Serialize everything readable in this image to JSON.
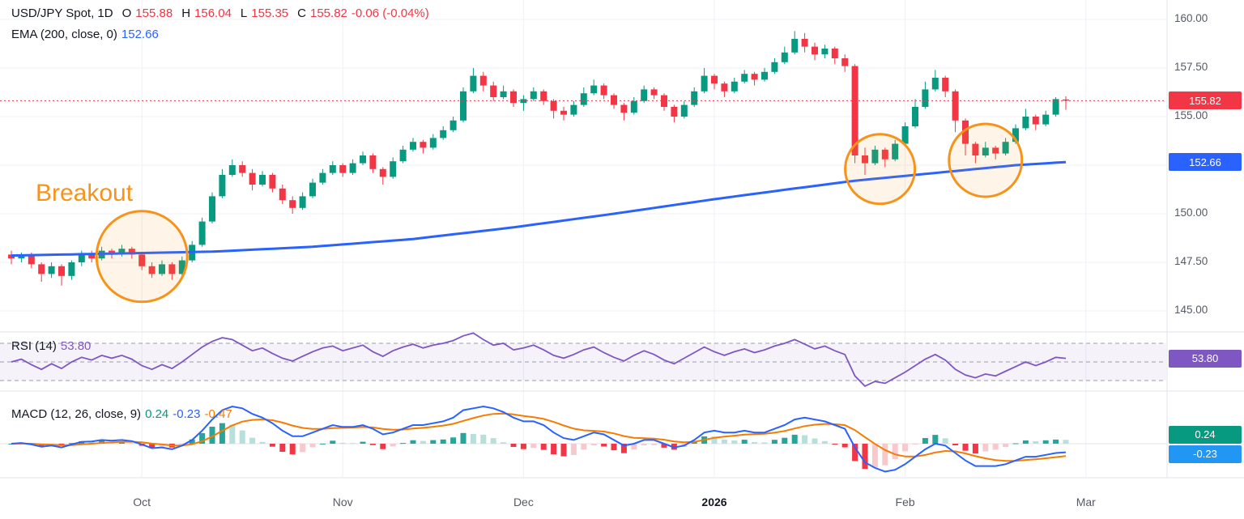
{
  "header": {
    "symbol": "USD/JPY Spot, 1D",
    "o_label": "O",
    "o": "155.88",
    "h_label": "H",
    "h": "156.04",
    "l_label": "L",
    "l": "155.35",
    "c_label": "C",
    "c": "155.82",
    "change": "-0.06 (-0.04%)",
    "ema_label": "EMA (200, close, 0)",
    "ema_value": "152.66"
  },
  "panes": {
    "rsi": {
      "legend": "RSI (14)",
      "value": "53.80"
    },
    "macd": {
      "legend": "MACD (12, 26, close, 9)",
      "hist_value": "0.24",
      "macd_value": "-0.23",
      "signal_value": "-0.47"
    }
  },
  "badges": {
    "last_price": "155.82",
    "ema": "152.66",
    "rsi": "53.80",
    "macd_hist": "0.24",
    "macd_line": "-0.23"
  },
  "axes": {
    "price_ticks": [
      {
        "label": "160.00",
        "price": 160
      },
      {
        "label": "157.50",
        "price": 157.5
      },
      {
        "label": "155.00",
        "price": 155
      },
      {
        "label": "150.00",
        "price": 150
      },
      {
        "label": "147.50",
        "price": 147.5
      },
      {
        "label": "145.00",
        "price": 145
      }
    ],
    "time_ticks": [
      {
        "label": "Oct",
        "i": 13
      },
      {
        "label": "Nov",
        "i": 33
      },
      {
        "label": "Dec",
        "i": 51
      },
      {
        "label": "2026",
        "i": 70,
        "bold": true
      },
      {
        "label": "Feb",
        "i": 89
      },
      {
        "label": "Mar",
        "i": 107
      }
    ]
  },
  "annotations": {
    "breakout_label": "Breakout",
    "circles": [
      {
        "i": 13,
        "price": 147.8,
        "r": 56
      },
      {
        "i": 86.5,
        "price": 152.3,
        "r": 43
      },
      {
        "i": 97,
        "price": 152.75,
        "r": 45
      }
    ]
  },
  "colors": {
    "up": "#089981",
    "down": "#f23645",
    "ema": "#2962ff",
    "ema_badge": "#2962ff",
    "rsi": "#7e57c2",
    "rsi_band": "rgba(126,87,194,0.08)",
    "macd_line": "#2962ff",
    "macd_signal": "#f57c00",
    "hist_up": "#26a69a",
    "hist_up_weak": "#b7dfdb",
    "hist_down": "#f23645",
    "hist_down_weak": "#f8c9cc",
    "hist_badge": "#089981",
    "macd_badge": "#2196f3",
    "annotation": "#f7931a",
    "grid": "#eef1f7",
    "divider": "#e0e3eb",
    "dashed": "#9b9eab",
    "axis_text": "#555a64"
  },
  "chart_data": {
    "type": "candlestick",
    "symbol": "USD/JPY Spot",
    "interval": "1D",
    "last_price": 155.82,
    "price_axis_range": [
      145,
      160
    ],
    "grid_prices": [
      160,
      157.5,
      155,
      152.5,
      150,
      147.5,
      145
    ],
    "candles": [
      [
        147.9,
        148.1,
        147.4,
        147.7
      ],
      [
        147.7,
        148.0,
        147.5,
        147.9
      ],
      [
        147.9,
        148.0,
        147.2,
        147.4
      ],
      [
        147.4,
        147.5,
        146.5,
        146.9
      ],
      [
        146.9,
        147.5,
        146.7,
        147.3
      ],
      [
        147.3,
        147.4,
        146.3,
        146.8
      ],
      [
        146.8,
        147.6,
        146.6,
        147.5
      ],
      [
        147.5,
        148.1,
        147.3,
        147.9
      ],
      [
        147.9,
        148.1,
        147.5,
        147.7
      ],
      [
        147.7,
        148.3,
        147.6,
        148.1
      ],
      [
        148.1,
        148.2,
        147.7,
        147.9
      ],
      [
        147.9,
        148.4,
        147.8,
        148.2
      ],
      [
        148.2,
        148.3,
        147.7,
        147.9
      ],
      [
        147.9,
        148.0,
        147.1,
        147.3
      ],
      [
        147.3,
        147.5,
        146.7,
        146.9
      ],
      [
        146.9,
        147.6,
        146.8,
        147.4
      ],
      [
        147.4,
        147.5,
        146.6,
        146.9
      ],
      [
        146.9,
        147.8,
        146.8,
        147.6
      ],
      [
        147.6,
        148.6,
        147.5,
        148.4
      ],
      [
        148.4,
        149.8,
        148.3,
        149.6
      ],
      [
        149.6,
        151.1,
        149.5,
        150.9
      ],
      [
        150.9,
        152.3,
        150.8,
        152.0
      ],
      [
        152.0,
        152.8,
        151.9,
        152.5
      ],
      [
        152.5,
        152.7,
        151.9,
        152.1
      ],
      [
        152.1,
        152.3,
        151.2,
        151.5
      ],
      [
        151.5,
        152.2,
        151.4,
        152.0
      ],
      [
        152.0,
        152.1,
        151.1,
        151.3
      ],
      [
        151.3,
        151.5,
        150.5,
        150.7
      ],
      [
        150.7,
        150.9,
        150.0,
        150.3
      ],
      [
        150.3,
        151.1,
        150.2,
        150.9
      ],
      [
        150.9,
        151.8,
        150.8,
        151.6
      ],
      [
        151.6,
        152.3,
        151.5,
        152.1
      ],
      [
        152.1,
        152.7,
        152.0,
        152.5
      ],
      [
        152.5,
        152.6,
        151.9,
        152.1
      ],
      [
        152.1,
        152.8,
        152.0,
        152.6
      ],
      [
        152.6,
        153.2,
        152.5,
        153.0
      ],
      [
        153.0,
        153.1,
        152.1,
        152.3
      ],
      [
        152.3,
        152.4,
        151.5,
        151.9
      ],
      [
        151.9,
        152.9,
        151.8,
        152.7
      ],
      [
        152.7,
        153.5,
        152.6,
        153.3
      ],
      [
        153.3,
        153.9,
        153.2,
        153.7
      ],
      [
        153.7,
        153.8,
        153.1,
        153.4
      ],
      [
        153.4,
        154.1,
        153.3,
        153.9
      ],
      [
        153.9,
        154.5,
        153.8,
        154.3
      ],
      [
        154.3,
        155.0,
        154.2,
        154.8
      ],
      [
        154.8,
        156.5,
        154.7,
        156.3
      ],
      [
        156.3,
        157.5,
        156.2,
        157.1
      ],
      [
        157.1,
        157.3,
        156.3,
        156.6
      ],
      [
        156.6,
        156.8,
        155.8,
        156.0
      ],
      [
        156.0,
        156.6,
        155.9,
        156.3
      ],
      [
        156.3,
        156.4,
        155.5,
        155.7
      ],
      [
        155.7,
        156.1,
        155.3,
        155.9
      ],
      [
        155.9,
        156.5,
        155.8,
        156.3
      ],
      [
        156.3,
        156.4,
        155.6,
        155.8
      ],
      [
        155.8,
        155.9,
        154.9,
        155.3
      ],
      [
        155.3,
        155.5,
        154.8,
        155.1
      ],
      [
        155.1,
        155.8,
        155.0,
        155.6
      ],
      [
        155.6,
        156.5,
        155.5,
        156.2
      ],
      [
        156.2,
        156.9,
        156.1,
        156.6
      ],
      [
        156.6,
        156.7,
        155.9,
        156.1
      ],
      [
        156.1,
        156.2,
        155.4,
        155.6
      ],
      [
        155.6,
        155.7,
        154.8,
        155.2
      ],
      [
        155.2,
        156.0,
        155.1,
        155.8
      ],
      [
        155.8,
        156.6,
        155.7,
        156.4
      ],
      [
        156.4,
        156.5,
        155.9,
        156.1
      ],
      [
        156.1,
        156.2,
        155.3,
        155.5
      ],
      [
        155.5,
        155.6,
        154.7,
        155.0
      ],
      [
        155.0,
        155.8,
        154.9,
        155.6
      ],
      [
        155.6,
        156.5,
        155.5,
        156.3
      ],
      [
        156.3,
        157.5,
        156.2,
        157.1
      ],
      [
        157.1,
        157.2,
        156.4,
        156.7
      ],
      [
        156.7,
        156.8,
        156.0,
        156.3
      ],
      [
        156.3,
        157.0,
        156.2,
        156.8
      ],
      [
        156.8,
        157.4,
        156.7,
        157.2
      ],
      [
        157.2,
        157.3,
        156.6,
        156.9
      ],
      [
        156.9,
        157.5,
        156.8,
        157.3
      ],
      [
        157.3,
        158.0,
        157.2,
        157.8
      ],
      [
        157.8,
        158.6,
        157.7,
        158.3
      ],
      [
        158.3,
        159.4,
        158.2,
        159.0
      ],
      [
        159.0,
        159.3,
        158.3,
        158.6
      ],
      [
        158.6,
        158.8,
        157.9,
        158.2
      ],
      [
        158.2,
        158.7,
        158.0,
        158.5
      ],
      [
        158.5,
        158.6,
        157.7,
        158.0
      ],
      [
        158.0,
        158.2,
        157.3,
        157.6
      ],
      [
        157.6,
        157.7,
        152.6,
        153.0
      ],
      [
        153.0,
        153.4,
        152.0,
        152.6
      ],
      [
        152.6,
        153.5,
        152.5,
        153.3
      ],
      [
        153.3,
        153.4,
        152.4,
        152.8
      ],
      [
        152.8,
        153.8,
        152.7,
        153.6
      ],
      [
        153.6,
        154.7,
        153.5,
        154.5
      ],
      [
        154.5,
        155.9,
        154.4,
        155.5
      ],
      [
        155.5,
        156.8,
        155.4,
        156.4
      ],
      [
        156.4,
        157.4,
        156.3,
        157.0
      ],
      [
        157.0,
        157.1,
        156.0,
        156.3
      ],
      [
        156.3,
        156.4,
        154.2,
        154.8
      ],
      [
        154.8,
        154.9,
        153.0,
        153.6
      ],
      [
        153.6,
        153.7,
        152.6,
        153.0
      ],
      [
        153.0,
        153.7,
        152.9,
        153.4
      ],
      [
        153.4,
        153.5,
        152.8,
        153.1
      ],
      [
        153.1,
        153.9,
        153.0,
        153.7
      ],
      [
        153.7,
        154.6,
        153.6,
        154.4
      ],
      [
        154.4,
        155.4,
        154.3,
        155.0
      ],
      [
        155.0,
        155.1,
        154.3,
        154.6
      ],
      [
        154.6,
        155.3,
        154.5,
        155.1
      ],
      [
        155.1,
        156.0,
        155.0,
        155.9
      ],
      [
        155.88,
        156.04,
        155.35,
        155.82
      ]
    ],
    "ema200": {
      "points": [
        [
          0,
          147.85
        ],
        [
          10,
          147.95
        ],
        [
          20,
          148.05
        ],
        [
          30,
          148.3
        ],
        [
          40,
          148.7
        ],
        [
          50,
          149.3
        ],
        [
          60,
          150.0
        ],
        [
          70,
          150.75
        ],
        [
          78,
          151.3
        ],
        [
          84,
          151.7
        ],
        [
          90,
          152.0
        ],
        [
          96,
          152.3
        ],
        [
          100,
          152.5
        ],
        [
          105,
          152.66
        ]
      ],
      "last": 152.66
    },
    "rsi14": {
      "levels": [
        70,
        50,
        30
      ],
      "values": [
        50,
        53,
        47,
        42,
        48,
        43,
        50,
        55,
        52,
        57,
        54,
        57,
        53,
        46,
        42,
        47,
        43,
        50,
        58,
        66,
        72,
        76,
        74,
        68,
        62,
        65,
        59,
        54,
        51,
        56,
        61,
        65,
        67,
        62,
        65,
        68,
        61,
        56,
        62,
        66,
        69,
        65,
        68,
        70,
        73,
        78,
        81,
        74,
        68,
        70,
        63,
        65,
        68,
        63,
        57,
        54,
        58,
        63,
        66,
        60,
        55,
        51,
        57,
        62,
        58,
        52,
        48,
        54,
        60,
        66,
        61,
        57,
        61,
        64,
        60,
        63,
        67,
        70,
        74,
        69,
        64,
        67,
        62,
        58,
        35,
        24,
        29,
        27,
        33,
        39,
        46,
        53,
        58,
        52,
        42,
        36,
        33,
        37,
        35,
        40,
        45,
        50,
        46,
        50,
        55,
        53.8
      ],
      "last": 53.8
    },
    "macd": {
      "line": [
        0,
        0.02,
        -0.02,
        -0.08,
        -0.05,
        -0.1,
        -0.02,
        0.05,
        0.06,
        0.1,
        0.08,
        0.1,
        0.07,
        -0.02,
        -0.12,
        -0.1,
        -0.15,
        -0.05,
        0.1,
        0.35,
        0.65,
        0.9,
        1.0,
        0.95,
        0.8,
        0.7,
        0.55,
        0.35,
        0.2,
        0.2,
        0.3,
        0.4,
        0.5,
        0.45,
        0.45,
        0.5,
        0.4,
        0.25,
        0.3,
        0.4,
        0.5,
        0.5,
        0.55,
        0.6,
        0.7,
        0.9,
        0.95,
        1.0,
        0.95,
        0.85,
        0.7,
        0.6,
        0.6,
        0.5,
        0.3,
        0.15,
        0.1,
        0.2,
        0.3,
        0.25,
        0.1,
        -0.05,
        0,
        0.1,
        0.1,
        0,
        -0.1,
        -0.05,
        0.1,
        0.3,
        0.35,
        0.3,
        0.3,
        0.35,
        0.3,
        0.3,
        0.4,
        0.5,
        0.65,
        0.7,
        0.65,
        0.6,
        0.5,
        0.4,
        -0.1,
        -0.5,
        -0.65,
        -0.75,
        -0.7,
        -0.55,
        -0.35,
        -0.15,
        0,
        -0.05,
        -0.25,
        -0.45,
        -0.6,
        -0.6,
        -0.6,
        -0.55,
        -0.45,
        -0.35,
        -0.35,
        -0.3,
        -0.25,
        -0.23
      ],
      "macd_last": -0.23,
      "signal_last": -0.47,
      "hist_last": 0.24
    }
  }
}
